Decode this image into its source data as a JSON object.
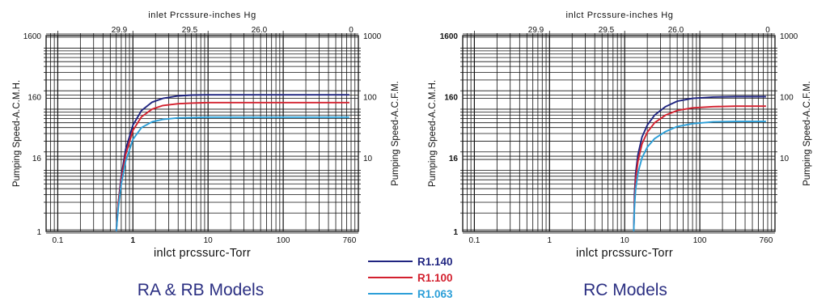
{
  "colors": {
    "R1.140": "#1f2480",
    "R1.100": "#d3202e",
    "R1.063": "#2c9fd8",
    "title": "#2b2f82",
    "grid": "#111111"
  },
  "chart_data": [
    {
      "type": "line",
      "x_scale": "log",
      "y_scale": "log",
      "xlim": [
        0.07,
        1000
      ],
      "ylim": [
        1,
        1600
      ],
      "title": "RA & RB Models",
      "top_axis_label": "inlet  Prcssure-inches Hg",
      "top_ticks": [
        {
          "label": "29.9",
          "torr": 0.66
        },
        {
          "label": "29.5",
          "torr": 5.7
        },
        {
          "label": "26.0",
          "torr": 48
        },
        {
          "label": "0",
          "torr": 800
        }
      ],
      "xlabel": "inlct prcssurc-Torr",
      "x_ticks": [
        {
          "label": "0.1",
          "value": 0.1,
          "bold": false
        },
        {
          "label": "1",
          "value": 1,
          "bold": true
        },
        {
          "label": "10",
          "value": 10,
          "bold": false
        },
        {
          "label": "100",
          "value": 100,
          "bold": false
        },
        {
          "label": "760",
          "value": 760,
          "bold": false
        }
      ],
      "ylabel_left": "Pumping Speed-A.C.M.H.",
      "y_ticks_left": [
        {
          "label": "1",
          "value": 1,
          "bold": false
        },
        {
          "label": "16",
          "value": 16,
          "bold": false
        },
        {
          "label": "160",
          "value": 160,
          "bold": false
        },
        {
          "label": "1600",
          "value": 1600,
          "bold": false
        }
      ],
      "ylabel_right": "Pumping Speed-A.C.F.M.",
      "y_ticks_right": [
        {
          "label": "10",
          "value": 16
        },
        {
          "label": "100",
          "value": 160
        },
        {
          "label": "1000",
          "value": 1600
        }
      ],
      "series": [
        {
          "name": "R1.140",
          "x": [
            0.6,
            0.64,
            0.7,
            0.8,
            1.0,
            1.3,
            1.8,
            2.5,
            4,
            6,
            10,
            30,
            100,
            760
          ],
          "y": [
            1,
            3,
            8,
            22,
            55,
            95,
            130,
            150,
            165,
            170,
            172,
            172,
            172,
            172
          ]
        },
        {
          "name": "R1.100",
          "x": [
            0.6,
            0.64,
            0.7,
            0.8,
            1.0,
            1.3,
            1.8,
            2.5,
            4,
            6,
            10,
            30,
            100,
            760
          ],
          "y": [
            1,
            3,
            7,
            18,
            45,
            75,
            100,
            115,
            123,
            126,
            128,
            128,
            128,
            128
          ]
        },
        {
          "name": "R1.063",
          "x": [
            0.6,
            0.64,
            0.7,
            0.8,
            1.0,
            1.3,
            1.8,
            2.5,
            4,
            6,
            10,
            30,
            100,
            760
          ],
          "y": [
            1,
            2.5,
            6,
            14,
            32,
            50,
            62,
            68,
            72,
            73,
            74,
            74,
            74,
            74
          ]
        }
      ]
    },
    {
      "type": "line",
      "x_scale": "log",
      "y_scale": "log",
      "xlim": [
        0.07,
        1000
      ],
      "ylim": [
        1,
        1600
      ],
      "title": "RC Models",
      "top_axis_label": "inlct  Prcssure-inches Hg",
      "top_ticks": [
        {
          "label": "29.9",
          "torr": 0.66
        },
        {
          "label": "29.5",
          "torr": 5.7
        },
        {
          "label": "26.0",
          "torr": 48
        },
        {
          "label": "0",
          "torr": 800
        }
      ],
      "xlabel": "inlct prcssurc-Torr",
      "x_ticks": [
        {
          "label": "0.1",
          "value": 0.1,
          "bold": false
        },
        {
          "label": "1",
          "value": 1,
          "bold": false
        },
        {
          "label": "10",
          "value": 10,
          "bold": false
        },
        {
          "label": "100",
          "value": 100,
          "bold": false
        },
        {
          "label": "760",
          "value": 760,
          "bold": false
        }
      ],
      "ylabel_left": "Pumping Speed-A.C.M.H.",
      "y_ticks_left": [
        {
          "label": "1",
          "value": 1,
          "bold": true
        },
        {
          "label": "16",
          "value": 16,
          "bold": true
        },
        {
          "label": "160",
          "value": 160,
          "bold": true
        },
        {
          "label": "1600",
          "value": 1600,
          "bold": true
        }
      ],
      "ylabel_right": "Pumping Speed-A.C.F.M.",
      "y_ticks_right": [
        {
          "label": "10",
          "value": 16
        },
        {
          "label": "100",
          "value": 160
        },
        {
          "label": "1000",
          "value": 1600
        }
      ],
      "series": [
        {
          "name": "R1.140",
          "x": [
            13.2,
            13.5,
            14,
            15,
            17,
            20,
            25,
            35,
            50,
            80,
            150,
            300,
            760
          ],
          "y": [
            1,
            4,
            9,
            18,
            35,
            55,
            80,
            110,
            135,
            150,
            158,
            160,
            160
          ]
        },
        {
          "name": "R1.100",
          "x": [
            13.2,
            13.5,
            14,
            15,
            17,
            20,
            25,
            35,
            50,
            80,
            150,
            300,
            760
          ],
          "y": [
            1,
            3,
            7,
            14,
            27,
            42,
            60,
            80,
            95,
            105,
            110,
            112,
            112
          ]
        },
        {
          "name": "R1.063",
          "x": [
            13.2,
            13.5,
            14,
            15,
            17,
            20,
            25,
            35,
            50,
            80,
            150,
            300,
            760
          ],
          "y": [
            1,
            2.5,
            5,
            9,
            16,
            24,
            33,
            43,
            52,
            58,
            62,
            63,
            63
          ]
        }
      ]
    }
  ],
  "legend": {
    "items": [
      {
        "label": "R1.140",
        "color": "#1f2480"
      },
      {
        "label": "R1.100",
        "color": "#d3202e"
      },
      {
        "label": "R1.063",
        "color": "#2c9fd8"
      }
    ]
  }
}
